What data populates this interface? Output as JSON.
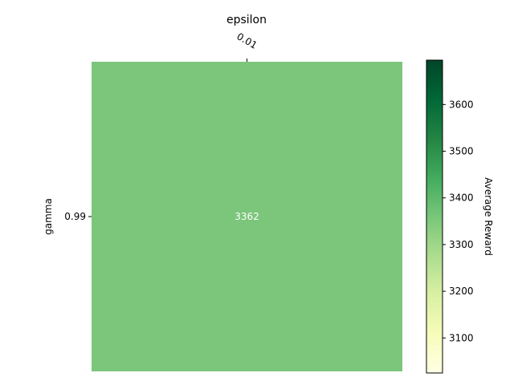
{
  "chart_data": {
    "type": "heatmap",
    "title": "",
    "x_axis": {
      "label": "epsilon",
      "position": "top",
      "categories": [
        "0.01"
      ]
    },
    "y_axis": {
      "label": "gamma",
      "categories": [
        "0.99"
      ]
    },
    "values": [
      [
        3362
      ]
    ],
    "cell_labels": [
      [
        "3362"
      ]
    ],
    "colorbar": {
      "label": "Average Reward",
      "colormap": "Greens-like (YlGn)",
      "range": [
        3025,
        3695
      ],
      "ticks": [
        3100,
        3200,
        3300,
        3400,
        3500,
        3600
      ],
      "tick_labels": [
        "3100",
        "3200",
        "3300",
        "3400",
        "3500",
        "3600"
      ],
      "colors": [
        "#ffffe5",
        "#f7fcb9",
        "#d9f0a3",
        "#addd8e",
        "#78c679",
        "#41ab5d",
        "#238443",
        "#006837",
        "#004529"
      ]
    },
    "cell_color": "#7bc67b",
    "cell_text_color": "#ffffff",
    "grid": false
  }
}
